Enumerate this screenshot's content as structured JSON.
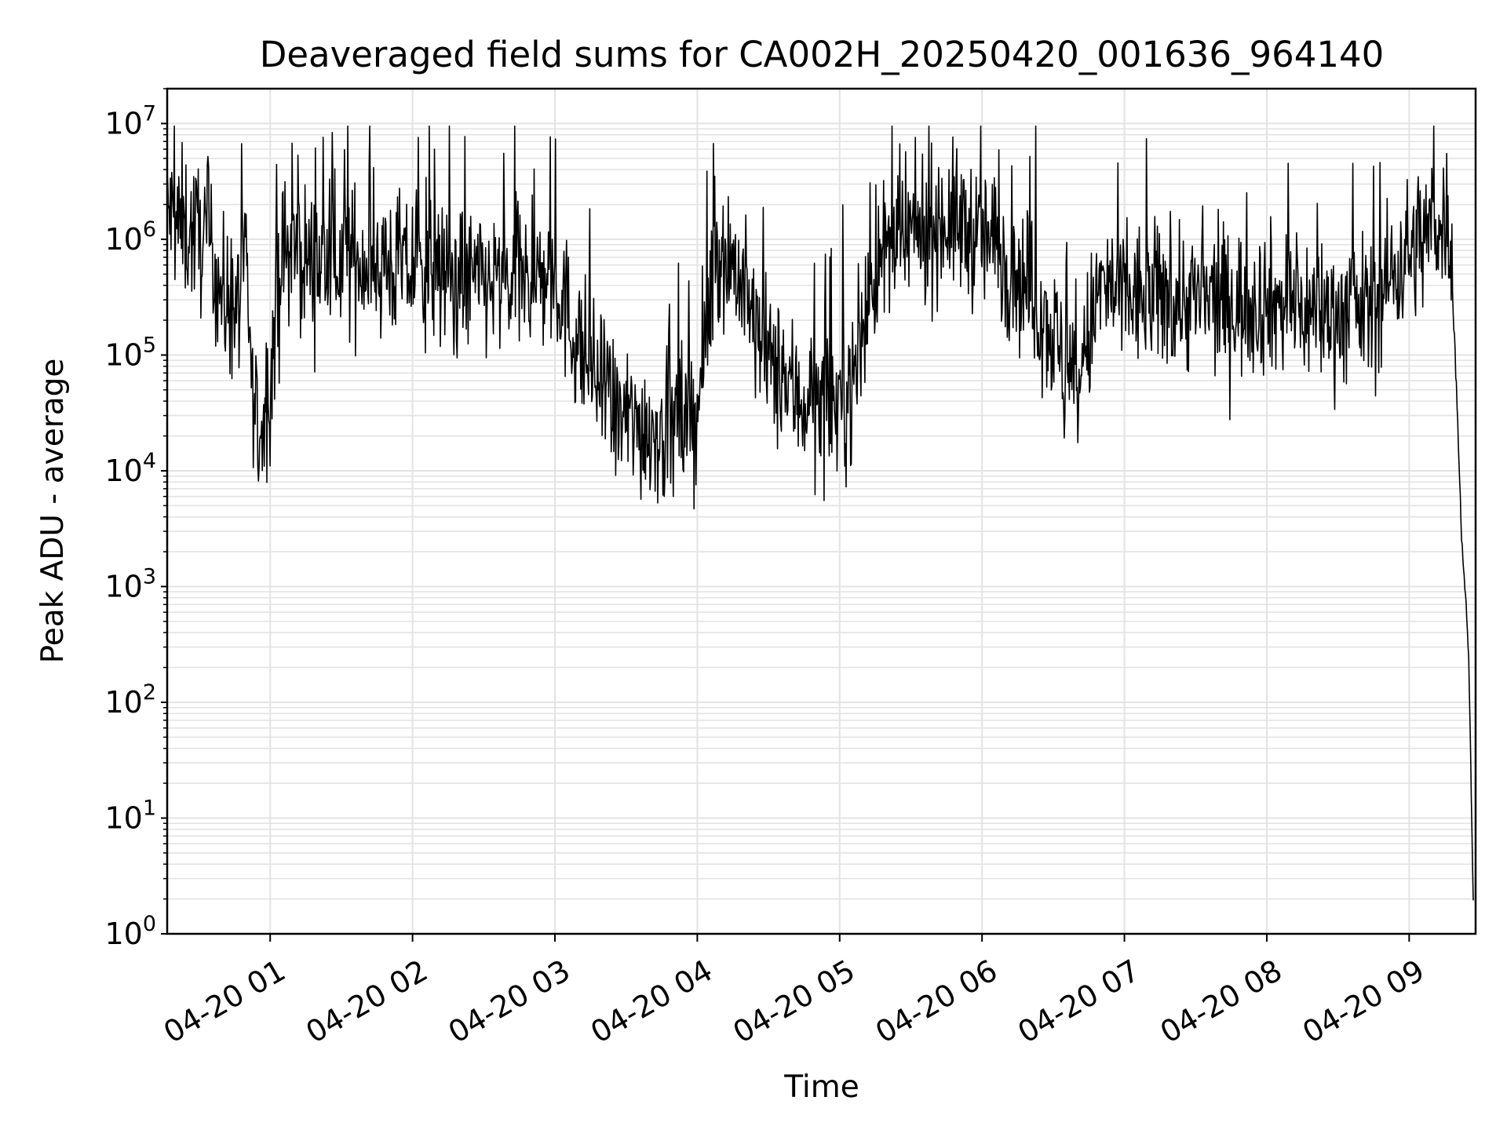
{
  "chart_data": {
    "type": "line",
    "title": "Deaveraged field sums for CA002H_20250420_001636_964140",
    "xlabel": "Time",
    "ylabel": "Peak ADU - average",
    "y_scale": "log",
    "ylim": [
      1,
      20000000
    ],
    "xlim": [
      "2025-04-20 00:16:36",
      "2025-04-20 09:28:00"
    ],
    "x_ticks": [
      {
        "value": "2025-04-20 01:00",
        "label": "04-20 01"
      },
      {
        "value": "2025-04-20 02:00",
        "label": "04-20 02"
      },
      {
        "value": "2025-04-20 03:00",
        "label": "04-20 03"
      },
      {
        "value": "2025-04-20 04:00",
        "label": "04-20 04"
      },
      {
        "value": "2025-04-20 05:00",
        "label": "04-20 05"
      },
      {
        "value": "2025-04-20 06:00",
        "label": "04-20 06"
      },
      {
        "value": "2025-04-20 07:00",
        "label": "04-20 07"
      },
      {
        "value": "2025-04-20 08:00",
        "label": "04-20 08"
      },
      {
        "value": "2025-04-20 09:00",
        "label": "04-20 09"
      }
    ],
    "y_ticks": [
      {
        "value": 1,
        "base": "10",
        "exp": "0"
      },
      {
        "value": 10,
        "base": "10",
        "exp": "1"
      },
      {
        "value": 100,
        "base": "10",
        "exp": "2"
      },
      {
        "value": 1000,
        "base": "10",
        "exp": "3"
      },
      {
        "value": 10000,
        "base": "10",
        "exp": "4"
      },
      {
        "value": 100000,
        "base": "10",
        "exp": "5"
      },
      {
        "value": 1000000,
        "base": "10",
        "exp": "6"
      },
      {
        "value": 10000000,
        "base": "10",
        "exp": "7"
      }
    ],
    "grid": true,
    "legend": "none",
    "colors": {
      "line": "#000000",
      "grid": "#e3e3e3",
      "axes": "#000000"
    },
    "series": [
      {
        "x": [
          "2025-04-20 00:16:36",
          "2025-04-20 00:20",
          "2025-04-20 00:25",
          "2025-04-20 00:30",
          "2025-04-20 00:35",
          "2025-04-20 00:40",
          "2025-04-20 00:45",
          "2025-04-20 00:50",
          "2025-04-20 00:53",
          "2025-04-20 00:56",
          "2025-04-20 01:00",
          "2025-04-20 01:05",
          "2025-04-20 01:10",
          "2025-04-20 01:20",
          "2025-04-20 01:30",
          "2025-04-20 01:40",
          "2025-04-20 01:50",
          "2025-04-20 02:00",
          "2025-04-20 02:10",
          "2025-04-20 02:20",
          "2025-04-20 02:30",
          "2025-04-20 02:40",
          "2025-04-20 02:50",
          "2025-04-20 03:00",
          "2025-04-20 03:08",
          "2025-04-20 03:15",
          "2025-04-20 03:25",
          "2025-04-20 03:35",
          "2025-04-20 03:45",
          "2025-04-20 03:55",
          "2025-04-20 04:00",
          "2025-04-20 04:08",
          "2025-04-20 04:16",
          "2025-04-20 04:25",
          "2025-04-20 04:35",
          "2025-04-20 04:45",
          "2025-04-20 04:55",
          "2025-04-20 05:05",
          "2025-04-20 05:15",
          "2025-04-20 05:25",
          "2025-04-20 05:35",
          "2025-04-20 05:45",
          "2025-04-20 05:55",
          "2025-04-20 06:05",
          "2025-04-20 06:15",
          "2025-04-20 06:25",
          "2025-04-20 06:32",
          "2025-04-20 06:35",
          "2025-04-20 06:40",
          "2025-04-20 06:50",
          "2025-04-20 07:00",
          "2025-04-20 07:15",
          "2025-04-20 07:30",
          "2025-04-20 07:45",
          "2025-04-20 08:00",
          "2025-04-20 08:15",
          "2025-04-20 08:30",
          "2025-04-20 08:45",
          "2025-04-20 08:55",
          "2025-04-20 09:05",
          "2025-04-20 09:12",
          "2025-04-20 09:15",
          "2025-04-20 09:17",
          "2025-04-20 09:19",
          "2025-04-20 09:20",
          "2025-04-20 09:22",
          "2025-04-20 09:25",
          "2025-04-20 09:27"
        ],
        "values": [
          1800000,
          1400000,
          1200000,
          1100000,
          900000,
          300000,
          250000,
          500000,
          30000,
          20000,
          60000,
          700000,
          800000,
          600000,
          700000,
          650000,
          600000,
          550000,
          500000,
          450000,
          420000,
          400000,
          450000,
          480000,
          150000,
          80000,
          30000,
          25000,
          22000,
          25000,
          30000,
          900000,
          600000,
          150000,
          60000,
          40000,
          35000,
          50000,
          600000,
          900000,
          1200000,
          1500000,
          1200000,
          900000,
          500000,
          250000,
          120000,
          60000,
          50000,
          400000,
          300000,
          320000,
          300000,
          280000,
          300000,
          250000,
          230000,
          260000,
          600000,
          1000000,
          1400000,
          1600000,
          1500000,
          150000,
          50000,
          3000,
          300,
          2
        ]
      }
    ],
    "fluctuation": {
      "sign_flip_sigma_log10": 0.45,
      "samples_per_hour": 220
    }
  }
}
